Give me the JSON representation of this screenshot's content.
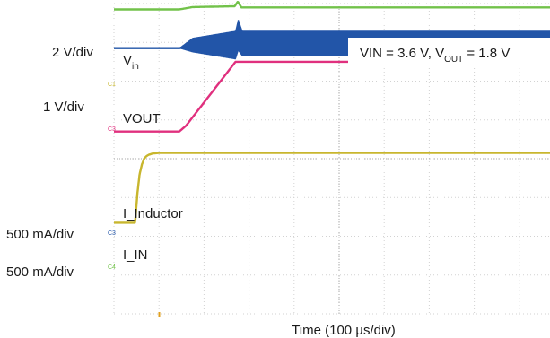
{
  "chart_data": {
    "type": "line",
    "title": "",
    "xlabel_prefix": "Time (100 ",
    "xlabel_unit_symbol": "µ",
    "xlabel_suffix": "s/div)",
    "x_unit": "µs",
    "x_per_div": 100,
    "xlim": [
      0,
      1000
    ],
    "grid": true,
    "condition": {
      "text_prefix": "VIN = 3.6 V, V",
      "sub": "OUT",
      "text_suffix": " = 1.8 V"
    },
    "scales": [
      "2 V/div",
      "1 V/div",
      "500 mA/div",
      "500 mA/div"
    ],
    "channel_markers": [
      "C1",
      "C3",
      "C3",
      "C4"
    ],
    "series": [
      {
        "label_main": "V",
        "label_sub": "in",
        "color": "#c8b62e",
        "unit": "V",
        "per_div": 2,
        "baseline_div": -1.65,
        "noise": 0,
        "x": [
          0,
          47,
          52,
          57,
          62,
          67,
          72,
          77,
          82,
          87,
          92,
          97,
          102,
          107,
          117,
          127,
          1000
        ],
        "y": [
          0,
          0,
          1.5,
          2.5,
          3.0,
          3.3,
          3.43,
          3.5,
          3.54,
          3.57,
          3.58,
          3.59,
          3.6,
          3.6,
          3.6,
          3.6,
          3.6
        ]
      },
      {
        "label_main": "VOUT",
        "label_sub": "",
        "color": "#e0307e",
        "unit": "V",
        "per_div": 1,
        "baseline_div": 0.7,
        "noise": 0,
        "x": [
          0,
          145,
          160,
          270,
          1000
        ],
        "y": [
          0,
          0,
          0.15,
          1.8,
          1.8
        ]
      },
      {
        "label_main": "I_Inductor",
        "label_sub": "",
        "color": "#2255a8",
        "unit": "mA",
        "per_div": 500,
        "baseline_div": 2.85,
        "noise": 1,
        "x": [
          0,
          145,
          175,
          270,
          276,
          285,
          1000
        ],
        "y": [
          0,
          0,
          40,
          40,
          170,
          60,
          60
        ],
        "ripple_pp": [
          0,
          0,
          180,
          360,
          400,
          320,
          320
        ]
      },
      {
        "label_main": "I_IN",
        "label_sub": "",
        "color": "#72c24a",
        "unit": "mA",
        "per_div": 500,
        "baseline_div": 3.85,
        "noise": 0,
        "x": [
          0,
          145,
          175,
          268,
          275,
          283,
          1000
        ],
        "y": [
          0,
          0,
          30,
          40,
          100,
          25,
          25
        ]
      }
    ]
  }
}
